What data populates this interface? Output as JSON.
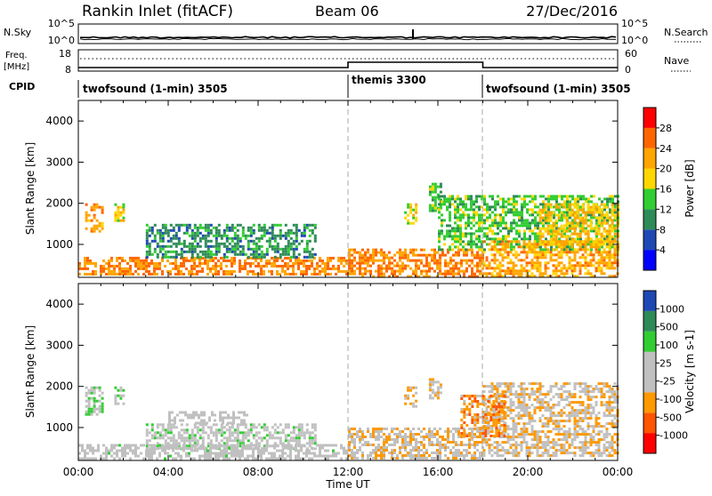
{
  "header": {
    "station": "Rankin Inlet (fitACF)",
    "beam": "Beam 06",
    "date": "27/Dec/2016"
  },
  "sky_panel": {
    "left_label": "N.Sky",
    "left_top_tick": "10^5",
    "left_bottom_tick": "10^0",
    "right_label": "N.Search",
    "right_top_tick": "10^5",
    "right_bottom_tick": "10^0"
  },
  "freq_panel": {
    "left_label_1": "Freq.",
    "left_label_2": "[MHz]",
    "left_top_tick": "18",
    "left_bottom_tick": "8",
    "right_label": "Nave",
    "right_top_tick": "60",
    "right_bottom_tick": "0"
  },
  "cpid": {
    "label": "CPID",
    "segments": [
      {
        "name": "twofsound (1-min) 3505",
        "start_hour": 0,
        "end_hour": 12
      },
      {
        "name": "themis 3300",
        "start_hour": 12,
        "end_hour": 18
      },
      {
        "name": "twofsound (1-min) 3505",
        "start_hour": 18,
        "end_hour": 24
      }
    ]
  },
  "x_axis": {
    "label": "Time UT",
    "ticks": [
      "00:00",
      "04:00",
      "08:00",
      "12:00",
      "16:00",
      "20:00",
      "00:00"
    ]
  },
  "colors": {
    "power_scale": [
      "#0000ff",
      "#1e48b4",
      "#2e8b57",
      "#32cd32",
      "#ffd700",
      "#ffa500",
      "#ff6600",
      "#ff0000"
    ],
    "velocity_scale": [
      "#ff0000",
      "#ff5500",
      "#ff9900",
      "#c0c0c0",
      "#c0c0c0",
      "#32cd32",
      "#2e8b57",
      "#1e48b4"
    ]
  },
  "chart_data": [
    {
      "type": "heatmap",
      "panel": "power",
      "ylabel": "Slant Range [km]",
      "yticks": [
        "1000",
        "2000",
        "3000",
        "4000"
      ],
      "ylim": [
        200,
        4500
      ],
      "xlim_hours": [
        0,
        24
      ],
      "colorbar": {
        "label": "Power [dB]",
        "ticks": [
          "4",
          "8",
          "12",
          "16",
          "20",
          "24",
          "28"
        ],
        "range": [
          0,
          32
        ]
      },
      "regions": [
        {
          "t0": 0.0,
          "t1": 12.0,
          "r0": 250,
          "r1": 700,
          "value": 24
        },
        {
          "t0": 0.3,
          "t1": 1.1,
          "r0": 1300,
          "r1": 2000,
          "value": 22
        },
        {
          "t0": 1.6,
          "t1": 2.0,
          "r0": 1600,
          "r1": 2000,
          "value": 18
        },
        {
          "t0": 3.0,
          "t1": 10.5,
          "r0": 700,
          "r1": 1500,
          "value": 10
        },
        {
          "t0": 12.0,
          "t1": 18.0,
          "r0": 250,
          "r1": 900,
          "value": 24
        },
        {
          "t0": 14.5,
          "t1": 15.0,
          "r0": 1500,
          "r1": 2000,
          "value": 18
        },
        {
          "t0": 15.6,
          "t1": 16.1,
          "r0": 1800,
          "r1": 2500,
          "value": 14
        },
        {
          "t0": 16.0,
          "t1": 24.0,
          "r0": 900,
          "r1": 2200,
          "value": 14
        },
        {
          "t0": 18.0,
          "t1": 24.0,
          "r0": 250,
          "r1": 1100,
          "value": 22
        },
        {
          "t0": 20.5,
          "t1": 24.0,
          "r0": 1000,
          "r1": 2000,
          "value": 20
        }
      ]
    },
    {
      "type": "heatmap",
      "panel": "velocity",
      "ylabel": "Slant Range [km]",
      "yticks": [
        "1000",
        "2000",
        "3000",
        "4000"
      ],
      "ylim": [
        200,
        4500
      ],
      "xlim_hours": [
        0,
        24
      ],
      "colorbar": {
        "label": "Velocity [m s-1]",
        "ticks": [
          "-1000",
          "-500",
          "-100",
          "-25",
          "25",
          "100",
          "500",
          "1000"
        ],
        "range": [
          -1500,
          1500
        ]
      },
      "regions": [
        {
          "t0": 0.3,
          "t1": 1.1,
          "r0": 1300,
          "r1": 2000,
          "value": 300
        },
        {
          "t0": 1.6,
          "t1": 2.0,
          "r0": 1600,
          "r1": 2000,
          "value": 300
        },
        {
          "t0": 3.0,
          "t1": 10.5,
          "r0": 500,
          "r1": 1100,
          "value": 150
        },
        {
          "t0": 4.0,
          "t1": 7.5,
          "r0": 1100,
          "r1": 1400,
          "value": 0
        },
        {
          "t0": 0.0,
          "t1": 12.0,
          "r0": 250,
          "r1": 600,
          "value": 60
        },
        {
          "t0": 12.0,
          "t1": 18.0,
          "r0": 250,
          "r1": 1000,
          "value": -300
        },
        {
          "t0": 14.5,
          "t1": 15.0,
          "r0": 1500,
          "r1": 2000,
          "value": -400
        },
        {
          "t0": 15.6,
          "t1": 16.1,
          "r0": 1700,
          "r1": 2200,
          "value": -300
        },
        {
          "t0": 18.0,
          "t1": 24.0,
          "r0": 300,
          "r1": 2100,
          "value": -300
        },
        {
          "t0": 17.0,
          "t1": 19.0,
          "r0": 800,
          "r1": 1800,
          "value": -600
        }
      ]
    }
  ]
}
